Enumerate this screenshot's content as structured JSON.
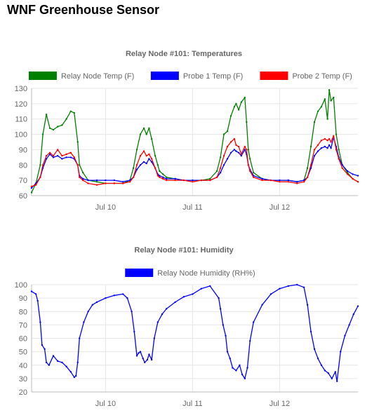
{
  "page": {
    "title": "WNF Greenhouse Sensor"
  },
  "chart_data": [
    {
      "type": "line",
      "title": "Relay Node #101: Temperatures",
      "xlabel": "",
      "ylabel": "",
      "ylim": [
        60,
        130
      ],
      "yticks": [
        60,
        70,
        80,
        90,
        100,
        110,
        120,
        130
      ],
      "xlim": [
        9.15,
        12.9
      ],
      "xticks": [
        {
          "x": 10,
          "label": "Jul 10"
        },
        {
          "x": 11,
          "label": "Jul 11"
        },
        {
          "x": 12,
          "label": "Jul 12"
        }
      ],
      "grid": true,
      "legend": "top-center",
      "series": [
        {
          "name": "Relay Node Temp (F)",
          "color": "#008000",
          "x": [
            9.15,
            9.2,
            9.25,
            9.28,
            9.32,
            9.36,
            9.4,
            9.45,
            9.5,
            9.55,
            9.6,
            9.64,
            9.68,
            9.7,
            9.74,
            9.8,
            9.9,
            10.0,
            10.1,
            10.2,
            10.28,
            10.32,
            10.36,
            10.4,
            10.44,
            10.47,
            10.5,
            10.53,
            10.57,
            10.6,
            10.62,
            10.66,
            10.7,
            10.8,
            10.9,
            11.0,
            11.1,
            11.2,
            11.28,
            11.32,
            11.36,
            11.4,
            11.44,
            11.48,
            11.5,
            11.53,
            11.56,
            11.6,
            11.62,
            11.64,
            11.66,
            11.7,
            11.8,
            11.9,
            12.0,
            12.1,
            12.2,
            12.28,
            12.32,
            12.36,
            12.4,
            12.44,
            12.48,
            12.52,
            12.55,
            12.57,
            12.59,
            12.62,
            12.65,
            12.68,
            12.72,
            12.78,
            12.84,
            12.9
          ],
          "y": [
            62,
            68,
            80,
            100,
            113,
            104,
            103,
            105,
            106,
            110,
            115,
            114,
            95,
            80,
            75,
            70,
            69,
            68,
            68,
            68,
            70,
            78,
            90,
            100,
            104,
            100,
            104,
            97,
            86,
            80,
            76,
            74,
            72,
            71,
            70,
            70,
            70,
            71,
            76,
            85,
            100,
            102,
            112,
            118,
            120,
            116,
            121,
            124,
            108,
            90,
            84,
            75,
            71,
            70,
            70,
            70,
            69,
            70,
            78,
            92,
            108,
            115,
            118,
            123,
            110,
            129,
            122,
            124,
            100,
            90,
            80,
            75,
            71,
            69
          ]
        },
        {
          "name": "Probe 1 Temp (F)",
          "color": "#0000ff",
          "x": [
            9.15,
            9.2,
            9.25,
            9.28,
            9.32,
            9.36,
            9.4,
            9.45,
            9.5,
            9.55,
            9.6,
            9.64,
            9.68,
            9.7,
            9.74,
            9.8,
            9.9,
            10.0,
            10.1,
            10.2,
            10.28,
            10.32,
            10.36,
            10.4,
            10.44,
            10.47,
            10.5,
            10.53,
            10.57,
            10.6,
            10.62,
            10.66,
            10.7,
            10.8,
            10.9,
            11.0,
            11.1,
            11.2,
            11.28,
            11.32,
            11.36,
            11.4,
            11.44,
            11.48,
            11.5,
            11.53,
            11.56,
            11.6,
            11.62,
            11.64,
            11.66,
            11.7,
            11.8,
            11.9,
            12.0,
            12.1,
            12.2,
            12.28,
            12.32,
            12.36,
            12.4,
            12.44,
            12.48,
            12.52,
            12.55,
            12.57,
            12.59,
            12.62,
            12.65,
            12.68,
            12.72,
            12.78,
            12.84,
            12.9
          ],
          "y": [
            65,
            68,
            72,
            78,
            84,
            87,
            85,
            86,
            84,
            85,
            85,
            84,
            80,
            73,
            71,
            70,
            70,
            70,
            70,
            69,
            70,
            72,
            77,
            80,
            82,
            81,
            84,
            82,
            78,
            74,
            73,
            72,
            71,
            71,
            70,
            70,
            70,
            70,
            72,
            75,
            80,
            84,
            88,
            90,
            89,
            88,
            86,
            90,
            87,
            80,
            77,
            73,
            71,
            70,
            70,
            70,
            69,
            70,
            72,
            78,
            86,
            89,
            91,
            92,
            91,
            93,
            91,
            98,
            92,
            85,
            80,
            76,
            74,
            73
          ]
        },
        {
          "name": "Probe 2 Temp (F)",
          "color": "#ff0000",
          "x": [
            9.15,
            9.2,
            9.25,
            9.28,
            9.32,
            9.36,
            9.4,
            9.45,
            9.5,
            9.55,
            9.6,
            9.64,
            9.68,
            9.7,
            9.74,
            9.8,
            9.9,
            10.0,
            10.1,
            10.2,
            10.28,
            10.32,
            10.36,
            10.4,
            10.44,
            10.47,
            10.5,
            10.53,
            10.57,
            10.6,
            10.62,
            10.66,
            10.7,
            10.8,
            10.9,
            11.0,
            11.1,
            11.2,
            11.28,
            11.32,
            11.36,
            11.4,
            11.44,
            11.48,
            11.5,
            11.53,
            11.56,
            11.6,
            11.62,
            11.64,
            11.66,
            11.7,
            11.8,
            11.9,
            12.0,
            12.1,
            12.2,
            12.28,
            12.32,
            12.36,
            12.4,
            12.44,
            12.48,
            12.52,
            12.55,
            12.57,
            12.59,
            12.62,
            12.65,
            12.68,
            12.72,
            12.78,
            12.84,
            12.9
          ],
          "y": [
            66,
            67,
            72,
            80,
            86,
            88,
            86,
            90,
            86,
            87,
            88,
            85,
            80,
            72,
            70,
            68,
            67,
            68,
            68,
            68,
            69,
            72,
            80,
            86,
            89,
            86,
            87,
            84,
            78,
            73,
            72,
            71,
            70,
            70,
            70,
            69,
            70,
            70,
            72,
            78,
            86,
            92,
            95,
            97,
            93,
            92,
            87,
            92,
            90,
            80,
            76,
            72,
            70,
            70,
            69,
            69,
            68,
            69,
            72,
            80,
            90,
            93,
            96,
            97,
            96,
            97,
            95,
            99,
            90,
            84,
            78,
            74,
            71,
            69
          ]
        }
      ]
    },
    {
      "type": "line",
      "title": "Relay Node #101: Humidity",
      "xlabel": "",
      "ylabel": "",
      "ylim": [
        20,
        100
      ],
      "yticks": [
        20,
        30,
        40,
        50,
        60,
        70,
        80,
        90,
        100
      ],
      "xlim": [
        9.15,
        12.9
      ],
      "xticks": [
        {
          "x": 10,
          "label": "Jul 10"
        },
        {
          "x": 11,
          "label": "Jul 11"
        },
        {
          "x": 12,
          "label": "Jul 12"
        }
      ],
      "grid": true,
      "legend": "top-center",
      "series": [
        {
          "name": "Relay Node Humidity (RH%)",
          "color": "#0000ff",
          "x": [
            9.15,
            9.2,
            9.22,
            9.25,
            9.27,
            9.3,
            9.32,
            9.35,
            9.4,
            9.45,
            9.5,
            9.55,
            9.6,
            9.64,
            9.66,
            9.68,
            9.7,
            9.75,
            9.8,
            9.85,
            9.9,
            10.0,
            10.1,
            10.2,
            10.25,
            10.3,
            10.33,
            10.36,
            10.38,
            10.4,
            10.43,
            10.45,
            10.48,
            10.5,
            10.53,
            10.56,
            10.6,
            10.65,
            10.7,
            10.8,
            10.9,
            11.0,
            11.1,
            11.2,
            11.3,
            11.32,
            11.35,
            11.38,
            11.4,
            11.43,
            11.46,
            11.5,
            11.54,
            11.57,
            11.6,
            11.63,
            11.66,
            11.7,
            11.8,
            11.9,
            12.0,
            12.1,
            12.2,
            12.28,
            12.32,
            12.36,
            12.4,
            12.44,
            12.48,
            12.52,
            12.56,
            12.6,
            12.64,
            12.66,
            12.7,
            12.75,
            12.8,
            12.85,
            12.9
          ],
          "y": [
            95,
            93,
            88,
            72,
            55,
            52,
            42,
            40,
            47,
            43,
            42,
            39,
            35,
            31,
            32,
            42,
            60,
            72,
            80,
            85,
            87,
            90,
            92,
            93,
            90,
            80,
            65,
            47,
            49,
            50,
            45,
            42,
            44,
            48,
            44,
            60,
            72,
            78,
            82,
            87,
            91,
            93,
            97,
            99,
            90,
            82,
            70,
            62,
            50,
            45,
            38,
            36,
            40,
            33,
            30,
            38,
            58,
            72,
            85,
            93,
            97,
            99,
            100,
            98,
            85,
            65,
            52,
            45,
            40,
            36,
            34,
            30,
            35,
            28,
            50,
            62,
            70,
            78,
            84
          ]
        }
      ]
    }
  ]
}
